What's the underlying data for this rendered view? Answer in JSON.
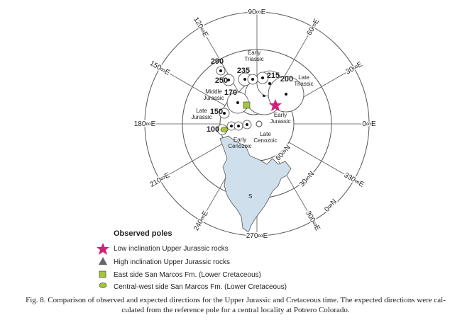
{
  "figure": {
    "longitude_labels": [
      "0∞E",
      "30∞E",
      "60∞E",
      "90∞E",
      "120∞E",
      "150∞E",
      "180∞E",
      "210∞E",
      "240∞E",
      "270∞E",
      "300∞E",
      "330∞E"
    ],
    "latitude_labels": [
      "60∞N",
      "30∞N",
      "0∞N"
    ],
    "pole_ages": [
      "290",
      "250",
      "235",
      "215",
      "200",
      "170",
      "150",
      "100"
    ],
    "region_labels": [
      "Early Triassic",
      "Late Triassic",
      "Middle Jurassic",
      "Late Jurassic",
      "Early Jurassic",
      "Late Cenozoic",
      "Early Cenozoic"
    ],
    "map_label": "S"
  },
  "legend": {
    "title": "Observed poles",
    "items": [
      "Low inclination Upper Jurassic rocks",
      "High inclination Upper Jurassic rocks",
      "East side San Marcos Fm. (Lower Cretaceous)",
      "Central-west side San Marcos Fm. (Lower Cretaceous)"
    ]
  },
  "caption": [
    "Fig. 8. Comparison of observed and expected directions for the Upper Jurassic and Cretaceous time. The expected directions were cal-",
    "culated from the reference pole for a central locality at Potrero Colorado."
  ]
}
